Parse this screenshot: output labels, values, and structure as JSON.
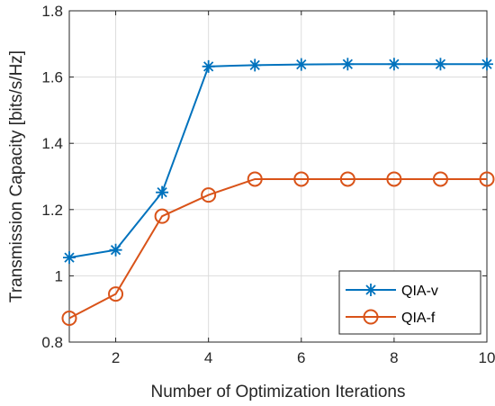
{
  "chart_data": {
    "type": "line",
    "title": "",
    "xlabel": "Number of Optimization Iterations",
    "ylabel": "Transmission Capacity [bits/s/Hz]",
    "xlim": [
      1,
      10
    ],
    "ylim": [
      0.8,
      1.8
    ],
    "xticks": [
      2,
      4,
      6,
      8,
      10
    ],
    "yticks": [
      0.8,
      1,
      1.2,
      1.4,
      1.6,
      1.8
    ],
    "grid": true,
    "legend_position": "bottom-right",
    "x": [
      1,
      2,
      3,
      4,
      5,
      6,
      7,
      8,
      9,
      10
    ],
    "series": [
      {
        "name": "QIA-v",
        "color": "#0072BD",
        "marker": "asterisk",
        "values": [
          1.055,
          1.078,
          1.252,
          1.632,
          1.636,
          1.638,
          1.639,
          1.639,
          1.639,
          1.639
        ]
      },
      {
        "name": "QIA-f",
        "color": "#D95319",
        "marker": "circle",
        "values": [
          0.872,
          0.945,
          1.18,
          1.244,
          1.292,
          1.292,
          1.292,
          1.292,
          1.292,
          1.292
        ]
      }
    ]
  }
}
